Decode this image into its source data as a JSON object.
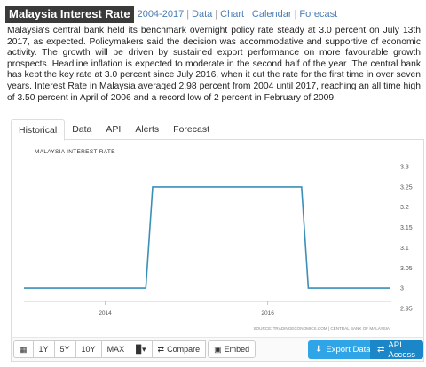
{
  "header": {
    "title": "Malaysia Interest Rate",
    "range": "2004-2017",
    "sep": "|",
    "links": [
      "Data",
      "Chart",
      "Calendar",
      "Forecast"
    ]
  },
  "description": "Malaysia's central bank held its benchmark overnight policy rate steady at 3.0 percent on July 13th 2017, as expected. Policymakers said the decision was accommodative and supportive of economic activity. The growth will be driven by sustained export performance on more favourable growth prospects. Headline inflation is expected to moderate in the second half of the year .The central bank has kept the key rate at 3.0 percent since July 2016, when it cut the rate for the first time in over seven years. Interest Rate in Malaysia averaged 2.98 percent from 2004 until 2017, reaching an all time high of 3.50 percent in April of 2006 and a record low of 2 percent in February of 2009.",
  "tabs": [
    "Historical",
    "Data",
    "API",
    "Alerts",
    "Forecast"
  ],
  "active_tab": "Historical",
  "chart_data": {
    "type": "line",
    "title": "MALAYSIA INTEREST RATE",
    "source": "SOURCE: TRADINGECONOMICS.COM | CENTRAL BANK OF MALAYSIA",
    "x": [
      "2013-01",
      "2014-07",
      "2014-08",
      "2016-06",
      "2016-07",
      "2017-07"
    ],
    "values": [
      3.0,
      3.0,
      3.25,
      3.25,
      3.0,
      3.0
    ],
    "x_ticks": [
      "2014",
      "2016"
    ],
    "y_ticks": [
      "3.3",
      "3.25",
      "3.2",
      "3.15",
      "3.1",
      "3.05",
      "3",
      "2.95"
    ],
    "ylim": [
      2.95,
      3.3
    ],
    "grid": false,
    "line_color": "#3a8fb7"
  },
  "toolbar": {
    "ranges": [
      "1Y",
      "5Y",
      "10Y",
      "MAX"
    ],
    "chart_type_icon": "bar-chart-icon",
    "compare": "Compare",
    "embed": "Embed",
    "export": "Export Data",
    "api": "API Access"
  }
}
